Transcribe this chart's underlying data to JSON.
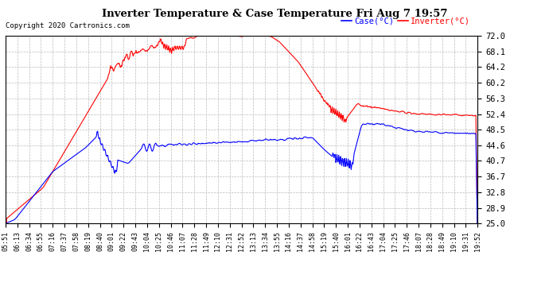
{
  "title": "Inverter Temperature & Case Temperature Fri Aug 7 19:57",
  "copyright": "Copyright 2020 Cartronics.com",
  "legend_case": "Case(°C)",
  "legend_inverter": "Inverter(°C)",
  "ylabel_ticks": [
    25.0,
    28.9,
    32.8,
    36.7,
    40.7,
    44.6,
    48.5,
    52.4,
    56.3,
    60.2,
    64.2,
    68.1,
    72.0
  ],
  "ylim": [
    25.0,
    72.0
  ],
  "background_color": "#ffffff",
  "plot_bg_color": "#ffffff",
  "grid_color": "#bbbbbb",
  "case_color": "blue",
  "inverter_color": "red",
  "x_labels": [
    "05:51",
    "06:13",
    "06:34",
    "06:55",
    "07:16",
    "07:37",
    "07:58",
    "08:19",
    "08:40",
    "09:01",
    "09:22",
    "09:43",
    "10:04",
    "10:25",
    "10:46",
    "11:07",
    "11:28",
    "11:49",
    "12:10",
    "12:31",
    "12:52",
    "13:13",
    "13:34",
    "13:55",
    "14:16",
    "14:37",
    "14:58",
    "15:19",
    "15:40",
    "16:01",
    "16:22",
    "16:43",
    "17:04",
    "17:25",
    "17:46",
    "18:07",
    "18:28",
    "18:49",
    "19:10",
    "19:31",
    "19:52"
  ],
  "figwidth": 6.9,
  "figheight": 3.75,
  "dpi": 100
}
